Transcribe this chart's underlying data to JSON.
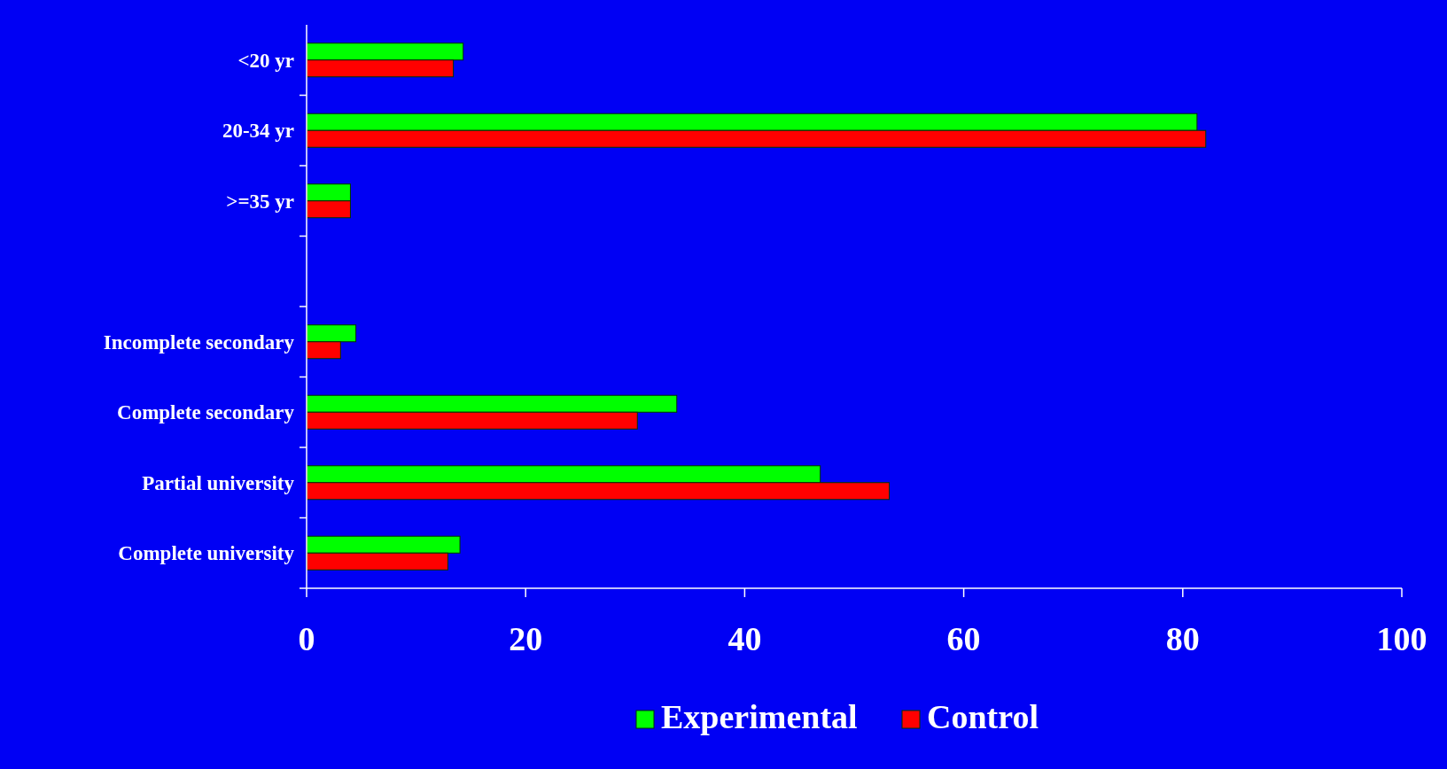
{
  "chart_data": {
    "type": "bar",
    "orientation": "horizontal",
    "categories": [
      "<20 yr",
      "20-34 yr",
      ">=35 yr",
      null,
      "Incomplete secondary",
      "Complete secondary",
      "Partial university",
      "Complete university"
    ],
    "series": [
      {
        "name": "Experimental",
        "color": "#00ff00",
        "values": [
          14.3,
          81.3,
          4.0,
          null,
          4.5,
          33.8,
          46.9,
          14.0
        ]
      },
      {
        "name": "Control",
        "color": "#ff0000",
        "values": [
          13.4,
          82.1,
          4.0,
          null,
          3.1,
          30.2,
          53.2,
          12.9
        ]
      }
    ],
    "xlim": [
      0,
      100
    ],
    "xticks": [
      0,
      20,
      40,
      60,
      80,
      100
    ],
    "grid": false,
    "legend": "bottom"
  }
}
